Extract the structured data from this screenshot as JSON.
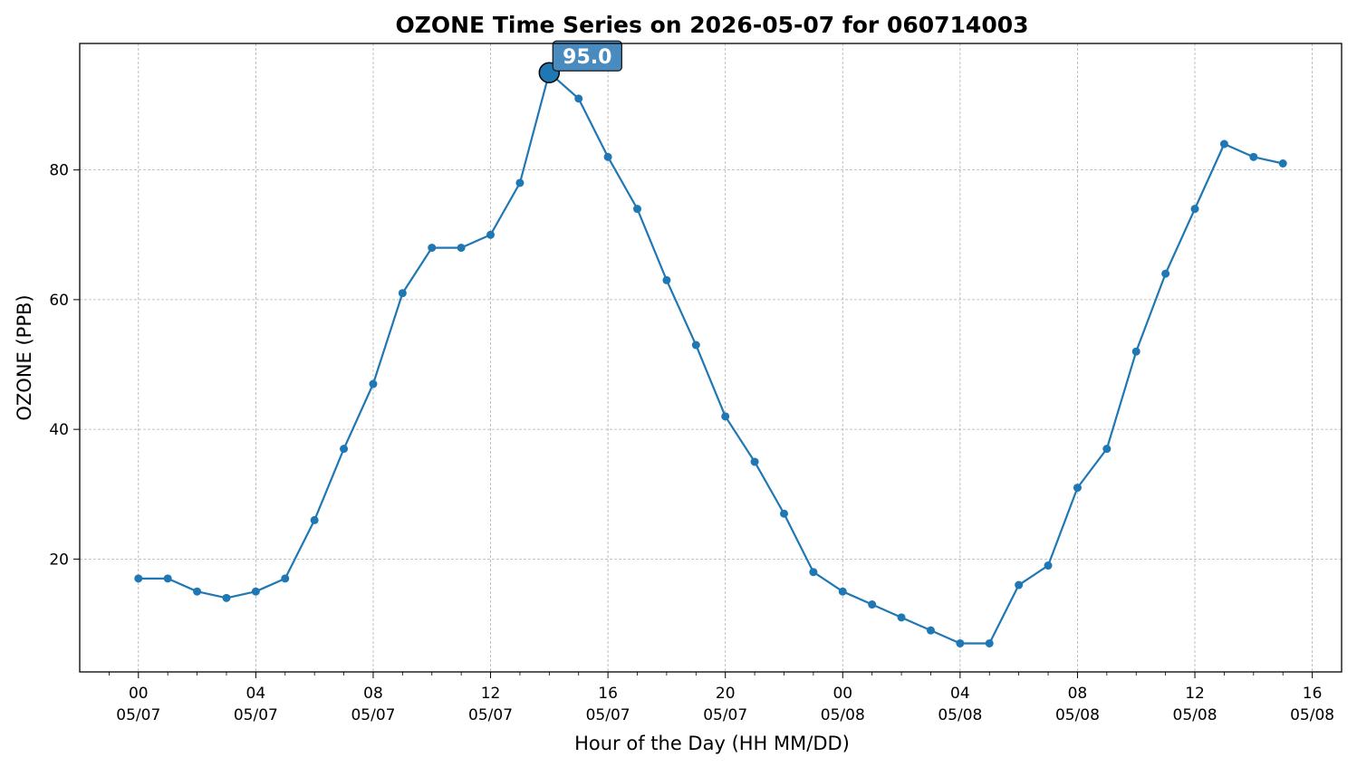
{
  "chart_data": {
    "type": "line",
    "title": "OZONE Time Series on 2026-05-07 for 060714003",
    "xlabel": "Hour of the Day (HH MM/DD)",
    "ylabel": "OZONE (PPB)",
    "grid": true,
    "x_tick_labels": [
      {
        "hh": "00",
        "date": "05/07",
        "hour": 0
      },
      {
        "hh": "04",
        "date": "05/07",
        "hour": 4
      },
      {
        "hh": "08",
        "date": "05/07",
        "hour": 8
      },
      {
        "hh": "12",
        "date": "05/07",
        "hour": 12
      },
      {
        "hh": "16",
        "date": "05/07",
        "hour": 16
      },
      {
        "hh": "20",
        "date": "05/07",
        "hour": 20
      },
      {
        "hh": "00",
        "date": "05/08",
        "hour": 24
      },
      {
        "hh": "04",
        "date": "05/08",
        "hour": 28
      },
      {
        "hh": "08",
        "date": "05/08",
        "hour": 32
      },
      {
        "hh": "12",
        "date": "05/08",
        "hour": 36
      },
      {
        "hh": "16",
        "date": "05/08",
        "hour": 40
      }
    ],
    "y_ticks": [
      20,
      40,
      60,
      80
    ],
    "ylim": [
      2.6,
      99.5
    ],
    "xlim": [
      -2,
      41
    ],
    "series": [
      {
        "color": "#1f77b4",
        "x": [
          0,
          1,
          2,
          3,
          4,
          5,
          6,
          7,
          8,
          9,
          10,
          11,
          12,
          13,
          14,
          15,
          16,
          17,
          18,
          19,
          20,
          21,
          22,
          23,
          24,
          25,
          26,
          27,
          28,
          29,
          30,
          31,
          32,
          33,
          34,
          35,
          36,
          37,
          38,
          39
        ],
        "values": [
          17,
          17,
          15,
          14,
          15,
          17,
          26,
          37,
          47,
          61,
          68,
          68,
          70,
          78,
          95,
          91,
          82,
          74,
          63,
          53,
          42,
          35,
          27,
          18,
          15,
          13,
          11,
          9,
          7,
          7,
          16,
          19,
          31,
          37,
          52,
          64,
          74,
          84,
          82,
          81
        ]
      }
    ],
    "peak": {
      "x": 14,
      "value": 95.0,
      "label": "95.0",
      "box_color": "#4a8bbf"
    }
  }
}
